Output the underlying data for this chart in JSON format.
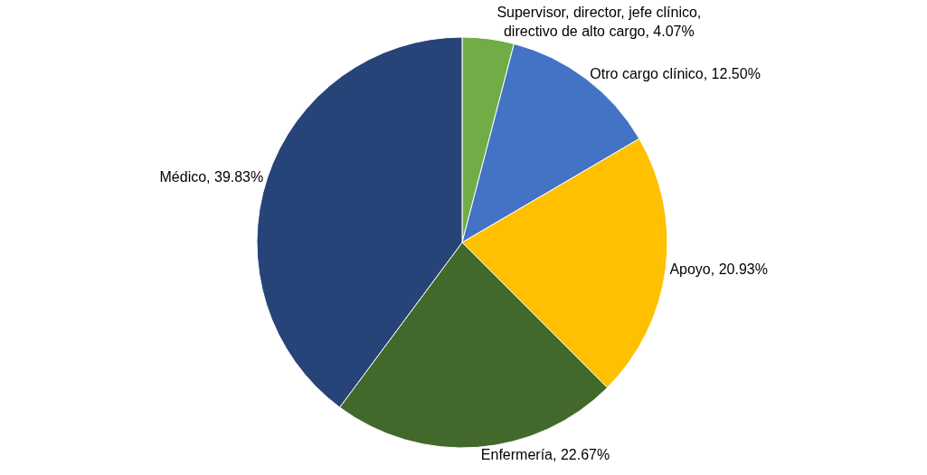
{
  "chart_data": {
    "type": "pie",
    "categories": [
      "Supervisor, director, jefe clínico, directivo de alto cargo",
      "Otro cargo clínico",
      "Apoyo",
      "Enfermería",
      "Médico"
    ],
    "values": [
      4.07,
      12.5,
      20.93,
      22.67,
      39.83
    ],
    "value_labels": [
      "4.07%",
      "12.50%",
      "20.93%",
      "22.67%",
      "39.83%"
    ],
    "colors": [
      "#70ad47",
      "#4472c4",
      "#ffc000",
      "#43682b",
      "#264478"
    ],
    "legend": false
  }
}
